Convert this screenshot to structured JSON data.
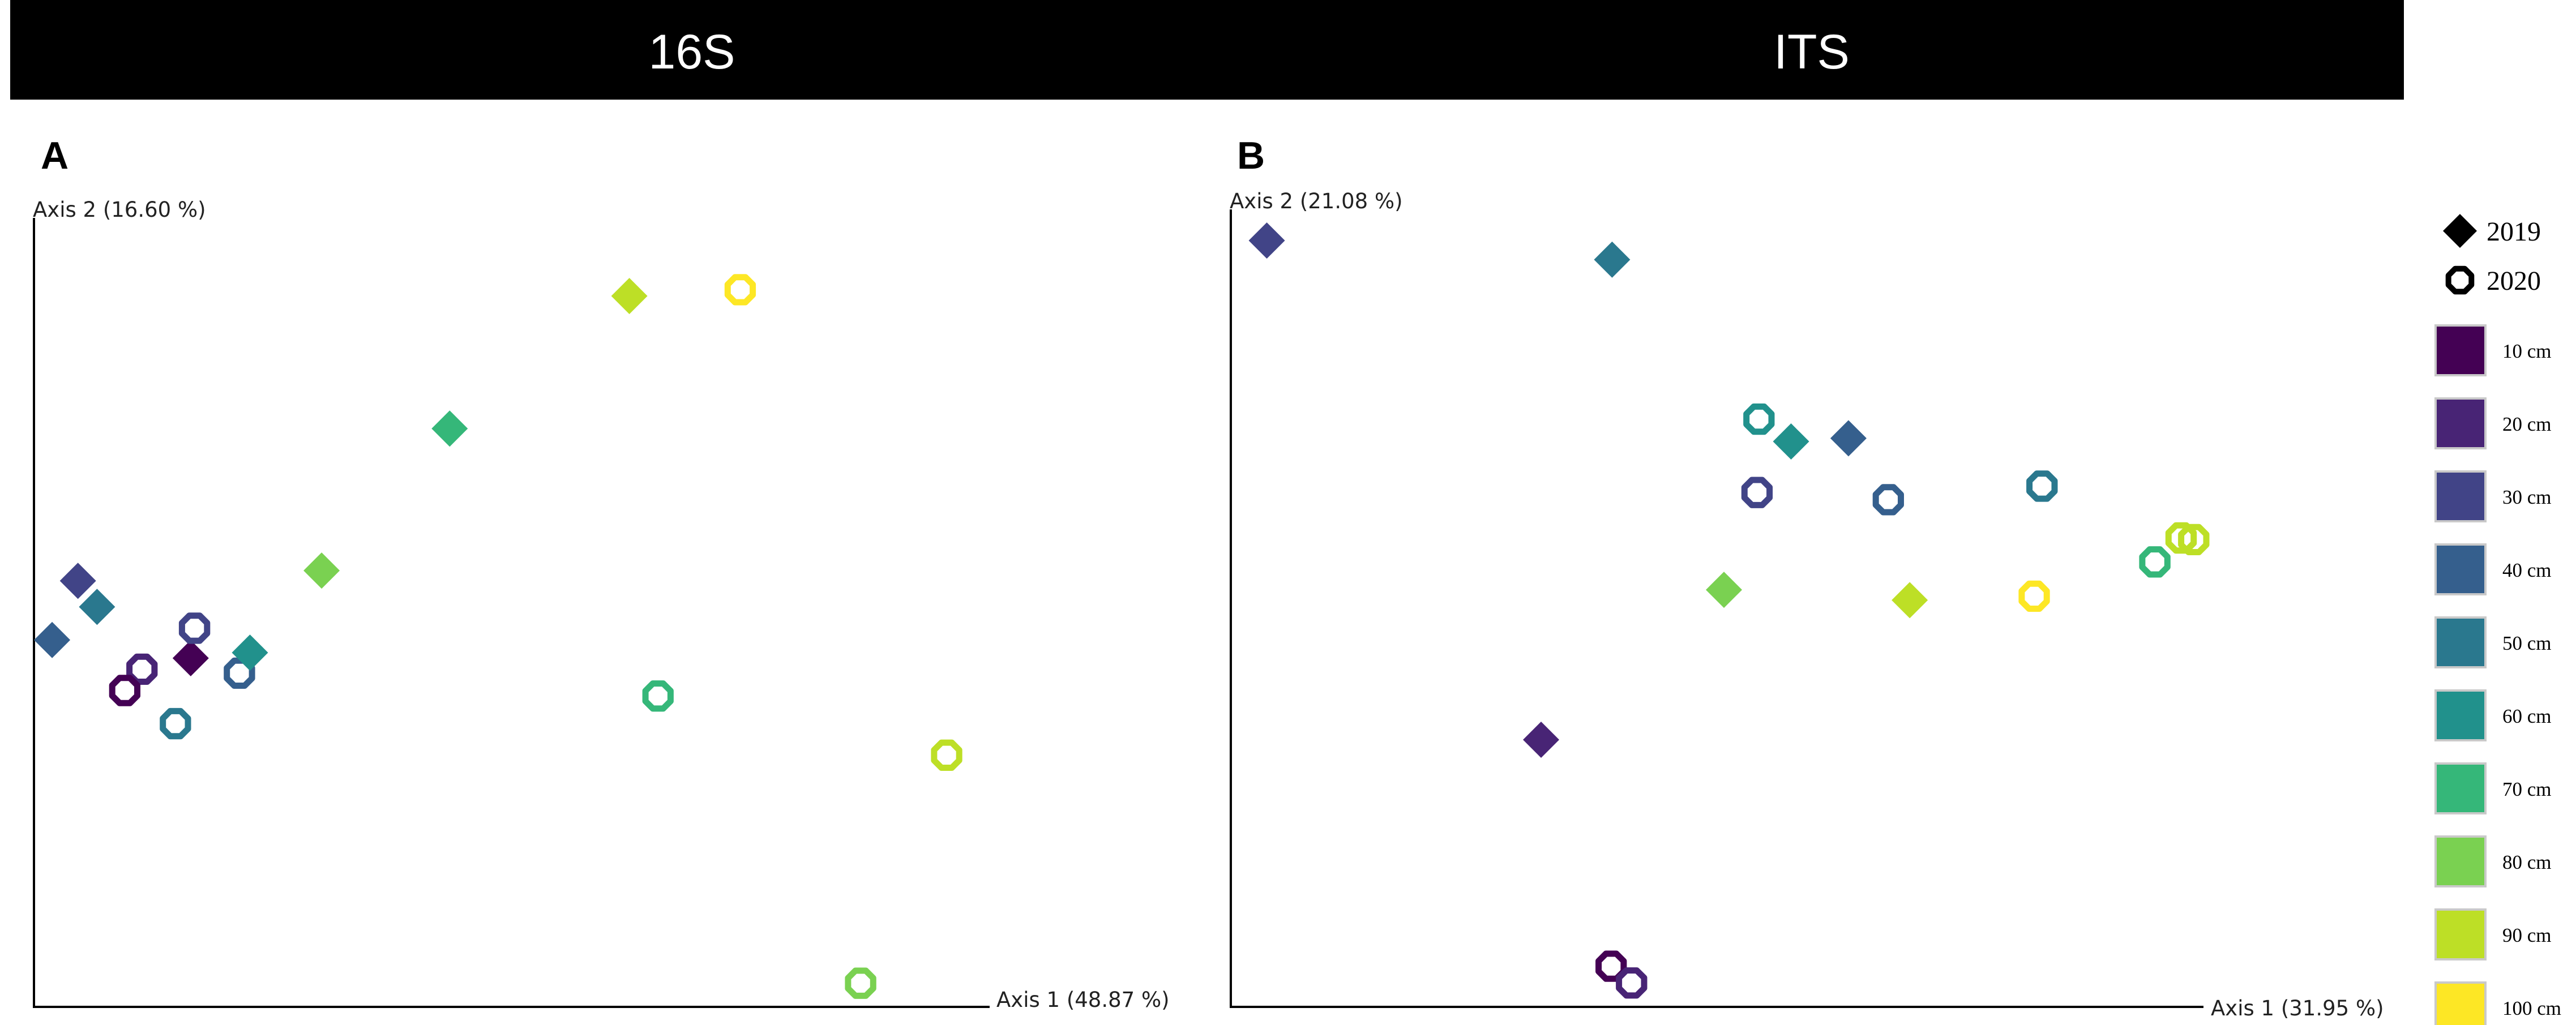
{
  "panels": [
    {
      "header": "16S",
      "letter": "A"
    },
    {
      "header": "ITS",
      "letter": "B"
    }
  ],
  "chart_data": [
    {
      "type": "scatter",
      "title": "16S",
      "panel_label": "A",
      "xlabel": "Axis 1 (48.87 %)",
      "ylabel": "Axis 2 (16.60 %)",
      "xlim": [
        0,
        100
      ],
      "ylim": [
        0,
        100
      ],
      "grid": false,
      "points": [
        {
          "depth": "10 cm",
          "year": "2019",
          "x": 16.4,
          "y": 44.2
        },
        {
          "depth": "20 cm",
          "year": "2020",
          "x": 11.3,
          "y": 42.8
        },
        {
          "depth": "10 cm",
          "year": "2020",
          "x": 9.5,
          "y": 40.1
        },
        {
          "depth": "30 cm",
          "year": "2020",
          "x": 16.8,
          "y": 48.0
        },
        {
          "depth": "30 cm",
          "year": "2019",
          "x": 4.6,
          "y": 54.0
        },
        {
          "depth": "40 cm",
          "year": "2019",
          "x": 1.9,
          "y": 46.5
        },
        {
          "depth": "50 cm",
          "year": "2019",
          "x": 6.6,
          "y": 50.7
        },
        {
          "depth": "40 cm",
          "year": "2020",
          "x": 21.5,
          "y": 42.3
        },
        {
          "depth": "60 cm",
          "year": "2019",
          "x": 22.6,
          "y": 44.9
        },
        {
          "depth": "50 cm",
          "year": "2020",
          "x": 14.8,
          "y": 35.9
        },
        {
          "depth": "70 cm",
          "year": "2019",
          "x": 43.5,
          "y": 73.3
        },
        {
          "depth": "80 cm",
          "year": "2019",
          "x": 30.1,
          "y": 55.3
        },
        {
          "depth": "70 cm",
          "year": "2020",
          "x": 65.3,
          "y": 39.4
        },
        {
          "depth": "90 cm",
          "year": "2019",
          "x": 62.3,
          "y": 90.1
        },
        {
          "depth": "100 cm",
          "year": "2020",
          "x": 73.9,
          "y": 90.9
        },
        {
          "depth": "90 cm",
          "year": "2020",
          "x": 95.5,
          "y": 31.9
        },
        {
          "depth": "80 cm",
          "year": "2020",
          "x": 86.5,
          "y": 3.0
        }
      ]
    },
    {
      "type": "scatter",
      "title": "ITS",
      "panel_label": "B",
      "xlabel": "Axis 1 (31.95 %)",
      "ylabel": "Axis 2 (21.08 %)",
      "xlim": [
        0,
        100
      ],
      "ylim": [
        0,
        100
      ],
      "grid": false,
      "legend": {
        "placement": "right",
        "shapes": [
          {
            "label": "2019",
            "marker": "diamond"
          },
          {
            "label": "2020",
            "marker": "ring"
          }
        ],
        "colors": [
          {
            "label": "10 cm",
            "color": "#440154"
          },
          {
            "label": "20 cm",
            "color": "#482475"
          },
          {
            "label": "30 cm",
            "color": "#414487"
          },
          {
            "label": "40 cm",
            "color": "#355f8d"
          },
          {
            "label": "50 cm",
            "color": "#2a788e"
          },
          {
            "label": "60 cm",
            "color": "#21918c"
          },
          {
            "label": "70 cm",
            "color": "#35b779"
          },
          {
            "label": "80 cm",
            "color": "#7ad151"
          },
          {
            "label": "90 cm",
            "color": "#bddf26"
          },
          {
            "label": "100 cm",
            "color": "#fde725"
          }
        ]
      },
      "points": [
        {
          "depth": "30 cm",
          "year": "2019",
          "x": 3.7,
          "y": 96.1
        },
        {
          "depth": "50 cm",
          "year": "2019",
          "x": 39.2,
          "y": 93.7
        },
        {
          "depth": "60 cm",
          "year": "2020",
          "x": 54.3,
          "y": 73.7
        },
        {
          "depth": "60 cm",
          "year": "2019",
          "x": 57.6,
          "y": 70.9
        },
        {
          "depth": "40 cm",
          "year": "2019",
          "x": 63.5,
          "y": 71.3
        },
        {
          "depth": "30 cm",
          "year": "2020",
          "x": 54.1,
          "y": 64.5
        },
        {
          "depth": "40 cm",
          "year": "2020",
          "x": 67.6,
          "y": 63.6
        },
        {
          "depth": "50 cm",
          "year": "2020",
          "x": 83.4,
          "y": 65.3
        },
        {
          "depth": "90 cm",
          "year": "2020",
          "x": 97.7,
          "y": 58.8
        },
        {
          "depth": "90 cm",
          "year": "2020",
          "x": 99.0,
          "y": 58.6
        },
        {
          "depth": "70 cm",
          "year": "2020",
          "x": 95.0,
          "y": 55.8
        },
        {
          "depth": "80 cm",
          "year": "2019",
          "x": 50.7,
          "y": 52.3
        },
        {
          "depth": "90 cm",
          "year": "2019",
          "x": 69.8,
          "y": 51.0
        },
        {
          "depth": "100 cm",
          "year": "2020",
          "x": 82.6,
          "y": 51.5
        },
        {
          "depth": "20 cm",
          "year": "2019",
          "x": 31.9,
          "y": 33.5
        },
        {
          "depth": "10 cm",
          "year": "2020",
          "x": 39.1,
          "y": 5.1
        },
        {
          "depth": "20 cm",
          "year": "2020",
          "x": 41.2,
          "y": 3.0
        }
      ]
    }
  ]
}
